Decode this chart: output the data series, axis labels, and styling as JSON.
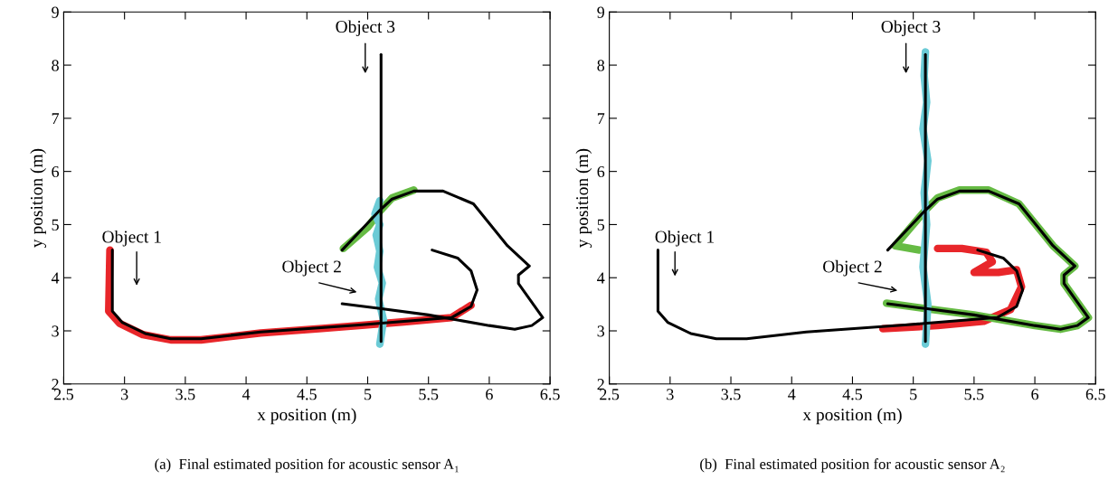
{
  "chart_data": [
    {
      "type": "line",
      "xlabel": "x position (m)",
      "ylabel": "y position (m)",
      "xlim": [
        2.5,
        6.5
      ],
      "ylim": [
        2,
        9
      ],
      "xticks": [
        2.5,
        3,
        3.5,
        4,
        4.5,
        5,
        5.5,
        6,
        6.5
      ],
      "yticks": [
        2,
        3,
        4,
        5,
        6,
        7,
        8,
        9
      ],
      "grid": false,
      "legend": false,
      "marker": "none",
      "line_style": "solid",
      "series": [
        {
          "color": "#e8262a",
          "x": [
            2.88,
            2.87,
            2.96,
            3.15,
            3.38,
            3.63,
            4.12,
            4.6,
            4.93,
            5.3,
            5.69,
            5.85
          ],
          "values": [
            4.52,
            3.37,
            3.14,
            2.93,
            2.83,
            2.83,
            2.96,
            3.04,
            3.1,
            3.17,
            3.25,
            3.48
          ]
        },
        {
          "color": "#66bb44",
          "x": [
            4.8,
            4.9,
            5.0,
            5.1,
            5.2,
            5.38
          ],
          "values": [
            4.55,
            4.75,
            4.95,
            5.25,
            5.5,
            5.65
          ]
        },
        {
          "color": "#6bcbd6",
          "x": [
            5.1,
            5.13,
            5.09,
            5.12,
            5.08,
            5.1,
            5.07,
            5.1,
            5.06,
            5.1
          ],
          "values": [
            2.75,
            3.2,
            3.6,
            3.9,
            4.2,
            4.5,
            4.8,
            5.0,
            5.2,
            5.45
          ]
        },
        {
          "color": "#000000",
          "x": [
            2.9,
            2.9,
            2.98,
            3.17,
            3.38,
            3.63,
            4.12,
            4.93,
            5.69,
            5.85,
            5.9,
            5.85,
            5.74,
            5.53
          ],
          "values": [
            4.52,
            3.37,
            3.16,
            2.95,
            2.85,
            2.85,
            2.98,
            3.11,
            3.25,
            3.46,
            3.77,
            4.13,
            4.37,
            4.52
          ]
        },
        {
          "color": "#000000",
          "x": [
            4.79,
            5.1,
            5.5,
            6.0,
            6.21,
            6.35,
            6.44,
            6.24,
            6.24,
            6.33,
            6.15,
            5.87,
            5.62,
            5.38,
            5.2,
            5.1,
            4.79
          ],
          "values": [
            3.51,
            3.42,
            3.3,
            3.1,
            3.03,
            3.1,
            3.25,
            3.89,
            4.05,
            4.22,
            4.6,
            5.39,
            5.63,
            5.63,
            5.48,
            5.27,
            4.52
          ]
        },
        {
          "color": "#000000",
          "x": [
            5.11,
            5.11
          ],
          "values": [
            2.8,
            8.2
          ]
        }
      ],
      "annotations": [
        "Object 1",
        "Object 2",
        "Object 3",
        "(a)  Final estimated position for acoustic sensor A₁"
      ]
    },
    {
      "type": "line",
      "xlabel": "x position (m)",
      "ylabel": "y position (m)",
      "xlim": [
        2.5,
        6.5
      ],
      "ylim": [
        2,
        9
      ],
      "xticks": [
        2.5,
        3,
        3.5,
        4,
        4.5,
        5,
        5.5,
        6,
        6.5
      ],
      "yticks": [
        2,
        3,
        4,
        5,
        6,
        7,
        8,
        9
      ],
      "grid": false,
      "legend": false,
      "marker": "none",
      "line_style": "solid",
      "series": [
        {
          "color": "#e8262a",
          "x": [
            4.75,
            5.2,
            5.58,
            5.8,
            5.89,
            5.85,
            5.7,
            5.5,
            5.65,
            5.6,
            5.4,
            5.2
          ],
          "values": [
            3.04,
            3.1,
            3.18,
            3.4,
            3.83,
            4.15,
            4.1,
            4.1,
            4.3,
            4.48,
            4.55,
            4.55
          ]
        },
        {
          "color": "#66bb44",
          "x": [
            4.78,
            5.1,
            5.5,
            6.0,
            6.21,
            6.35,
            6.44,
            6.24,
            6.24,
            6.33,
            6.15,
            5.87,
            5.62,
            5.38,
            5.2,
            5.1,
            4.85,
            5.05
          ],
          "values": [
            3.52,
            3.42,
            3.3,
            3.1,
            3.03,
            3.1,
            3.25,
            3.89,
            4.05,
            4.22,
            4.6,
            5.39,
            5.65,
            5.65,
            5.5,
            5.27,
            4.6,
            4.52
          ]
        },
        {
          "color": "#6bcbd6",
          "x": [
            5.1,
            5.12,
            5.08,
            5.11,
            5.09,
            5.12,
            5.08,
            5.11,
            5.09,
            5.1
          ],
          "values": [
            2.75,
            3.5,
            4.2,
            5.0,
            5.6,
            6.2,
            6.8,
            7.3,
            7.8,
            8.25
          ]
        },
        {
          "color": "#000000",
          "x": [
            2.9,
            2.9,
            2.98,
            3.17,
            3.38,
            3.63,
            4.12,
            4.93,
            5.69,
            5.85,
            5.9,
            5.85,
            5.74,
            5.53
          ],
          "values": [
            4.52,
            3.37,
            3.16,
            2.95,
            2.85,
            2.85,
            2.98,
            3.11,
            3.25,
            3.46,
            3.77,
            4.13,
            4.37,
            4.52
          ]
        },
        {
          "color": "#000000",
          "x": [
            4.79,
            5.1,
            5.5,
            6.0,
            6.21,
            6.35,
            6.44,
            6.24,
            6.24,
            6.33,
            6.15,
            5.87,
            5.62,
            5.38,
            5.2,
            5.1,
            4.79
          ],
          "values": [
            3.51,
            3.42,
            3.3,
            3.1,
            3.03,
            3.1,
            3.25,
            3.89,
            4.05,
            4.22,
            4.6,
            5.39,
            5.63,
            5.63,
            5.48,
            5.27,
            4.52
          ]
        },
        {
          "color": "#000000",
          "x": [
            5.1,
            5.1
          ],
          "values": [
            2.8,
            8.2
          ]
        }
      ],
      "annotations": [
        "Object 1",
        "Object 2",
        "Object 3",
        "(b)  Final estimated position for acoustic sensor A₂"
      ]
    }
  ]
}
